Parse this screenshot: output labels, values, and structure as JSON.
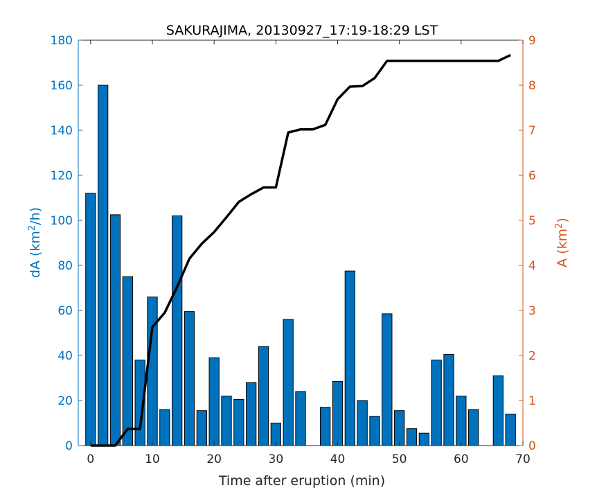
{
  "chart_data": {
    "type": "bar",
    "title": "SAKURAJIMA, 20130927_17:19-18:29 LST",
    "xlabel": "Time after eruption (min)",
    "ylabel_left": {
      "text": "dA (km",
      "sup": "2",
      "tail": "/h)"
    },
    "ylabel_right": {
      "text": "A (km",
      "sup": "2",
      "tail": ")"
    },
    "xlim": [
      -2,
      70
    ],
    "ylim_left": [
      0,
      180
    ],
    "ylim_right": [
      0,
      9
    ],
    "xticks": [
      0,
      10,
      20,
      30,
      40,
      50,
      60,
      70
    ],
    "yticks_left": [
      0,
      20,
      40,
      60,
      80,
      100,
      120,
      140,
      160,
      180
    ],
    "yticks_right": [
      0,
      1,
      2,
      3,
      4,
      5,
      6,
      7,
      8,
      9
    ],
    "colors": {
      "bars": "#0072bd",
      "bar_edge": "#000000",
      "line": "#000000",
      "left_axis": "#0072bd",
      "right_axis": "#d95319",
      "x_axis": "#262626"
    },
    "bar_width_minutes": 1.6,
    "series": [
      {
        "type": "bar",
        "axis": "left",
        "x": [
          0,
          2,
          4,
          6,
          8,
          10,
          12,
          14,
          16,
          18,
          20,
          22,
          24,
          26,
          28,
          30,
          32,
          34,
          36,
          38,
          40,
          42,
          44,
          46,
          48,
          50,
          52,
          54,
          56,
          58,
          60,
          62,
          64,
          66,
          68
        ],
        "values": [
          112,
          160,
          102.5,
          75,
          38,
          66,
          16,
          102,
          59.5,
          15.5,
          39,
          22,
          20.5,
          28,
          44,
          10,
          56,
          24,
          0,
          17,
          28.5,
          77.5,
          20,
          13,
          58.5,
          15.5,
          7.5,
          5.5,
          38,
          40.5,
          22,
          16,
          0,
          31,
          14
        ]
      },
      {
        "type": "line",
        "axis": "right",
        "x": [
          0,
          2,
          4,
          6,
          8,
          10,
          12,
          14,
          16,
          18,
          20,
          22,
          24,
          26,
          28,
          30,
          32,
          34,
          36,
          38,
          40,
          42,
          44,
          46,
          48,
          50,
          52,
          54,
          56,
          58,
          60,
          62,
          64,
          66,
          68
        ],
        "values": [
          0,
          0,
          0,
          0.37,
          0.37,
          2.63,
          2.95,
          3.52,
          4.15,
          4.48,
          4.74,
          5.07,
          5.41,
          5.58,
          5.73,
          5.73,
          6.95,
          7.02,
          7.02,
          7.12,
          7.69,
          7.97,
          7.98,
          8.16,
          8.54,
          8.54,
          8.54,
          8.54,
          8.54,
          8.54,
          8.54,
          8.54,
          8.54,
          8.54,
          8.67
        ]
      }
    ]
  }
}
